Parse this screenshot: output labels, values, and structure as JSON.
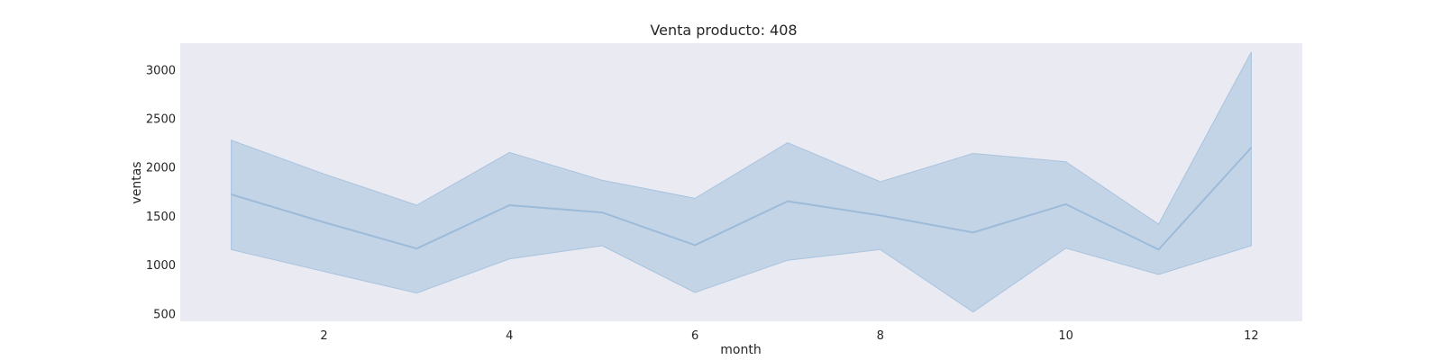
{
  "chart_data": {
    "type": "line",
    "title": "Venta producto: 408",
    "xlabel": "month",
    "ylabel": "ventas",
    "xlim": [
      0.45,
      12.55
    ],
    "ylim": [
      420,
      3270
    ],
    "xticks": [
      2,
      4,
      6,
      8,
      10,
      12
    ],
    "yticks": [
      500,
      1000,
      1500,
      2000,
      2500,
      3000
    ],
    "grid": false,
    "colors": {
      "background": "#eaeaf2",
      "line": "#9dbbd8",
      "band_fill": "#bcd0e5",
      "band_edge": "#a9c3de"
    },
    "series": [
      {
        "x": [
          1,
          2,
          3,
          4,
          5,
          6,
          7,
          8,
          9,
          10,
          11,
          12
        ],
        "values": [
          1720,
          1435,
          1165,
          1610,
          1535,
          1200,
          1650,
          1505,
          1330,
          1620,
          1155,
          2200
        ],
        "upper": [
          2275,
          1930,
          1610,
          2150,
          1865,
          1680,
          2250,
          1850,
          2140,
          2055,
          1415,
          3180
        ],
        "lower": [
          1155,
          930,
          710,
          1060,
          1195,
          715,
          1045,
          1155,
          515,
          1170,
          900,
          1195
        ]
      }
    ]
  }
}
